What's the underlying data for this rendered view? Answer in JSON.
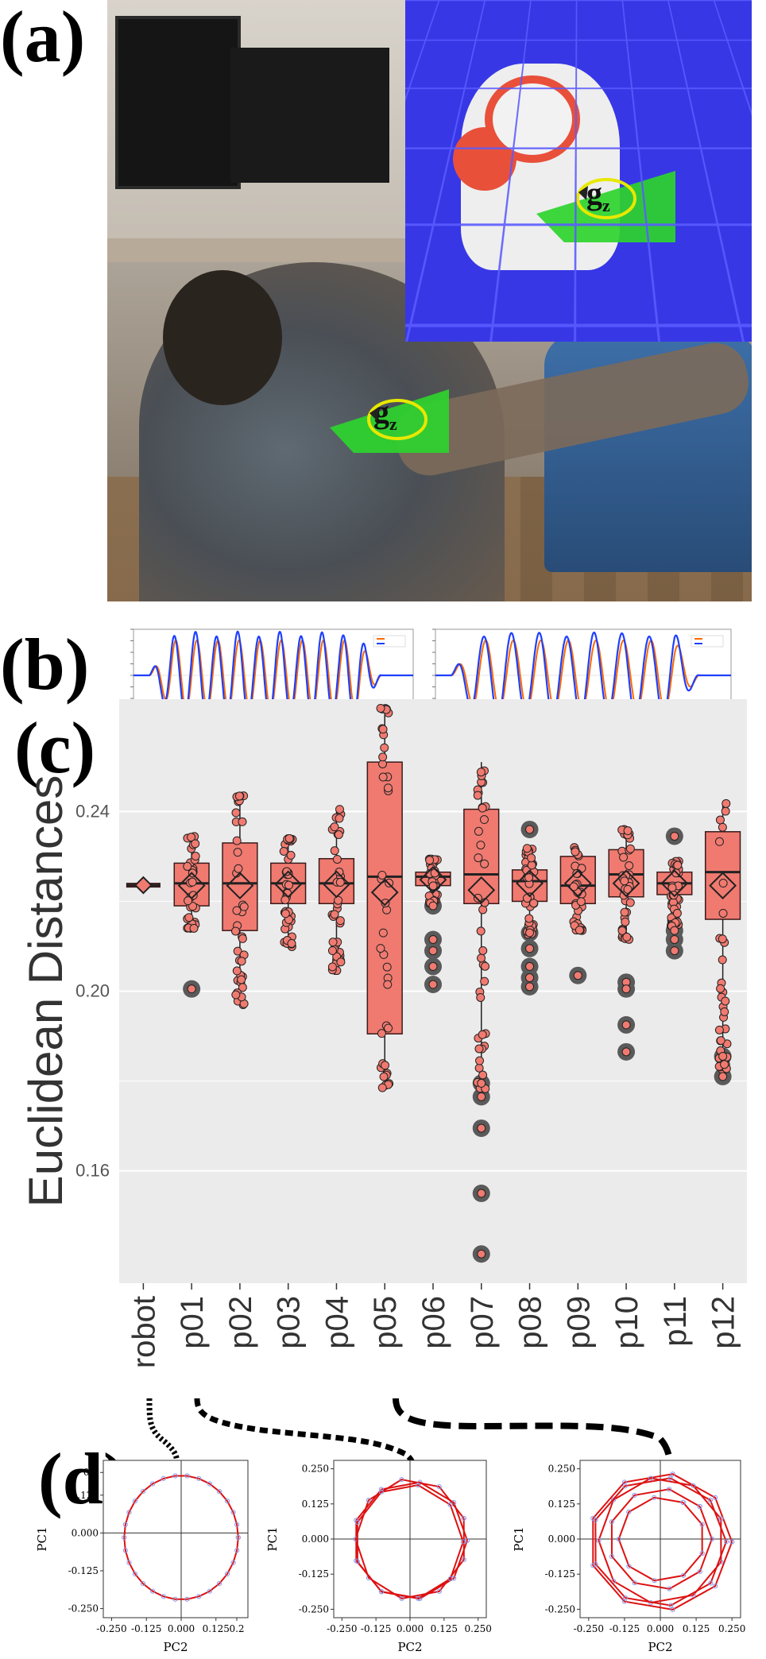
{
  "panels": {
    "a": "(a)",
    "b": "(b)",
    "c": "(c)",
    "d": "(d)"
  },
  "photo_annotation": {
    "label_main": "g",
    "label_sub": "z"
  },
  "colors": {
    "box_fill": "#f07a70",
    "box_stroke": "#3a1a1a",
    "point_fill": "#f07a70",
    "outlier": "#5a5a5a",
    "plot_bg": "#ebebeb",
    "gridline": "#ffffff",
    "series_a": "#ff6a00",
    "series_b": "#1f3fff",
    "pc_line": "#dd1111",
    "pc_point": "#8899ee",
    "wedge": "#2ed42e"
  },
  "chart_data": [
    {
      "id": "b-left",
      "type": "line",
      "title": "",
      "series": [
        {
          "name": "",
          "color_key": "series_a"
        },
        {
          "name": "",
          "color_key": "series_b"
        }
      ],
      "cycles": 11,
      "grid": false
    },
    {
      "id": "b-right",
      "type": "line",
      "title": "",
      "series": [
        {
          "name": "",
          "color_key": "series_a"
        },
        {
          "name": "",
          "color_key": "series_b"
        }
      ],
      "cycles": 9,
      "grid": false
    },
    {
      "id": "c",
      "type": "box",
      "title": "",
      "xlabel": "",
      "ylabel": "Euclidean Distances",
      "ylim": [
        0.135,
        0.265
      ],
      "yticks": [
        0.16,
        0.2,
        0.24
      ],
      "ytick_labels": [
        "0.16",
        "0.20",
        "0.24"
      ],
      "grid": true,
      "categories": [
        "robot",
        "p01",
        "p02",
        "p03",
        "p04",
        "p05",
        "p06",
        "p07",
        "p08",
        "p09",
        "p10",
        "p11",
        "p12"
      ],
      "boxes": [
        {
          "q1": 0.2232,
          "median": 0.2236,
          "q3": 0.224,
          "wlo": 0.2232,
          "whi": 0.224,
          "mean": 0.2236,
          "outliers": []
        },
        {
          "q1": 0.219,
          "median": 0.224,
          "q3": 0.2285,
          "wlo": 0.214,
          "whi": 0.2345,
          "mean": 0.2235,
          "outliers": [
            0.2005
          ]
        },
        {
          "q1": 0.2135,
          "median": 0.224,
          "q3": 0.233,
          "wlo": 0.197,
          "whi": 0.2435,
          "mean": 0.2235,
          "outliers": []
        },
        {
          "q1": 0.2195,
          "median": 0.224,
          "q3": 0.2285,
          "wlo": 0.2095,
          "whi": 0.234,
          "mean": 0.2238,
          "outliers": []
        },
        {
          "q1": 0.2195,
          "median": 0.224,
          "q3": 0.2295,
          "wlo": 0.2045,
          "whi": 0.2405,
          "mean": 0.2238,
          "outliers": []
        },
        {
          "q1": 0.1905,
          "median": 0.2255,
          "q3": 0.251,
          "wlo": 0.1785,
          "whi": 0.263,
          "mean": 0.222,
          "outliers": []
        },
        {
          "q1": 0.2235,
          "median": 0.2255,
          "q3": 0.2265,
          "wlo": 0.2195,
          "whi": 0.2295,
          "mean": 0.2248,
          "outliers": [
            0.219,
            0.2115,
            0.209,
            0.2055,
            0.2015
          ]
        },
        {
          "q1": 0.2195,
          "median": 0.226,
          "q3": 0.2405,
          "wlo": 0.178,
          "whi": 0.251,
          "mean": 0.2225,
          "outliers": [
            0.1795,
            0.1765,
            0.1695,
            0.155,
            0.1415
          ]
        },
        {
          "q1": 0.22,
          "median": 0.2245,
          "q3": 0.227,
          "wlo": 0.2125,
          "whi": 0.232,
          "mean": 0.224,
          "outliers": [
            0.236,
            0.213,
            0.2095,
            0.2055,
            0.203,
            0.201
          ]
        },
        {
          "q1": 0.2195,
          "median": 0.2235,
          "q3": 0.23,
          "wlo": 0.2135,
          "whi": 0.232,
          "mean": 0.224,
          "outliers": [
            0.2035
          ]
        },
        {
          "q1": 0.221,
          "median": 0.226,
          "q3": 0.2315,
          "wlo": 0.2115,
          "whi": 0.236,
          "mean": 0.224,
          "outliers": [
            0.202,
            0.2005,
            0.1925,
            0.1865
          ]
        },
        {
          "q1": 0.2215,
          "median": 0.224,
          "q3": 0.2265,
          "wlo": 0.2145,
          "whi": 0.229,
          "mean": 0.224,
          "outliers": [
            0.2345,
            0.2135,
            0.2115,
            0.209
          ]
        },
        {
          "q1": 0.216,
          "median": 0.2265,
          "q3": 0.2355,
          "wlo": 0.1825,
          "whi": 0.242,
          "mean": 0.2235,
          "outliers": [
            0.1855,
            0.181
          ]
        }
      ]
    },
    {
      "id": "d-robot",
      "type": "line",
      "title": "",
      "xlabel": "PC2",
      "ylabel": "PC1",
      "xlim": [
        -0.28,
        0.24
      ],
      "ylim": [
        -0.28,
        0.24
      ],
      "xticks": [
        -0.25,
        -0.125,
        0.0,
        0.125,
        0.2
      ],
      "xtick_labels": [
        "-0.250",
        "-0.125",
        "0.000",
        "0.125",
        "0.2"
      ],
      "yticks": [
        -0.25,
        -0.125,
        0.0,
        0.125,
        0.2
      ],
      "ytick_labels": [
        "-0.250",
        "-0.125",
        "0.000",
        "0.125",
        "0.2"
      ],
      "loops": [
        {
          "rx": 0.205,
          "ry": 0.205,
          "cx": 0.0,
          "cy": -0.015
        }
      ],
      "points": 30
    },
    {
      "id": "d-p01",
      "type": "line",
      "title": "",
      "xlabel": "PC2",
      "ylabel": "PC1",
      "xlim": [
        -0.28,
        0.28
      ],
      "ylim": [
        -0.28,
        0.28
      ],
      "xticks": [
        -0.25,
        -0.125,
        0.0,
        0.125,
        0.25
      ],
      "xtick_labels": [
        "-0.250",
        "-0.125",
        "0.000",
        "0.125",
        "0.250"
      ],
      "yticks": [
        -0.25,
        -0.125,
        0.0,
        0.125,
        0.25
      ],
      "ytick_labels": [
        "-0.250",
        "-0.125",
        "0.000",
        "0.125",
        "0.250"
      ],
      "loops": [
        {
          "rx": 0.21,
          "ry": 0.21,
          "cx": 0.0,
          "cy": -0.005
        },
        {
          "rx": 0.205,
          "ry": 0.215,
          "cx": 0.005,
          "cy": 0.0
        },
        {
          "rx": 0.2,
          "ry": 0.205,
          "cx": -0.005,
          "cy": -0.01
        }
      ],
      "points": 9
    },
    {
      "id": "d-p05",
      "type": "line",
      "title": "",
      "xlabel": "PC2",
      "ylabel": "PC1",
      "xlim": [
        -0.28,
        0.28
      ],
      "ylim": [
        -0.28,
        0.28
      ],
      "xticks": [
        -0.25,
        -0.125,
        0.0,
        0.125,
        0.25
      ],
      "xtick_labels": [
        "-0.250",
        "-0.125",
        "0.000",
        "0.125",
        "0.250"
      ],
      "yticks": [
        -0.25,
        -0.125,
        0.0,
        0.125,
        0.25
      ],
      "ytick_labels": [
        "-0.250",
        "-0.125",
        "0.000",
        "0.125",
        "0.250"
      ],
      "loops": [
        {
          "rx": 0.25,
          "ry": 0.245,
          "cx": 0.0,
          "cy": -0.01
        },
        {
          "rx": 0.22,
          "ry": 0.225,
          "cx": 0.005,
          "cy": -0.005
        },
        {
          "rx": 0.18,
          "ry": 0.18,
          "cx": 0.0,
          "cy": 0.0
        },
        {
          "rx": 0.15,
          "ry": 0.15,
          "cx": 0.005,
          "cy": 0.0
        },
        {
          "rx": 0.235,
          "ry": 0.23,
          "cx": -0.005,
          "cy": -0.01
        }
      ],
      "points": 9
    }
  ]
}
